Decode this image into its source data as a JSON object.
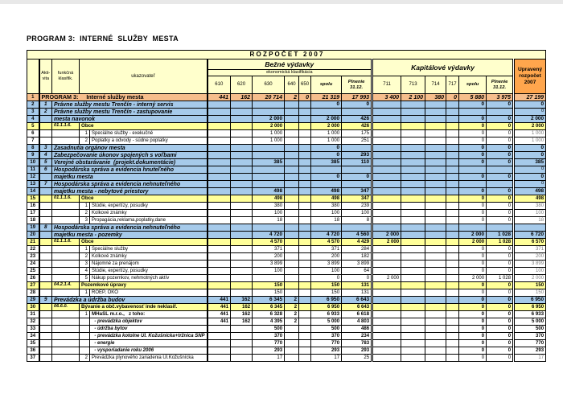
{
  "page_title": "PROGRAM 3:  INTERNÉ  SLUŽBY  MESTA",
  "colors": {
    "header_bg": "#FFFFCC",
    "orange_header_bg": "#FFA64D",
    "program_row_bg": "#F6BE8C",
    "section_row_bg": "#A6CAEA",
    "classification_row_bg": "#FFFF99",
    "grid_line": "#000000"
  },
  "header": {
    "banner": "R O Z P O Č E T   2 0 0 7",
    "aktivita_line1": "Akti-",
    "aktivita_line2": "vita",
    "klasifikacia_line1": "funkčná",
    "klasifikacia_line2": "klasifik.",
    "ukazovatel": "ukazovateľ",
    "bezne_vydavky": "Bežné výdavky",
    "ekonomicka_klasifikacia": "ekonomická klasifikácia",
    "kapitalove_vydavky": "Kapitálové výdavky",
    "upraveny_rozpocet": "Upravený rozpočet 2007",
    "bezne_cols": [
      "610",
      "620",
      "630",
      "640",
      "650",
      "spolu",
      "Plnenie 31.12."
    ],
    "kapitalove_cols": [
      "711",
      "713",
      "714",
      "717",
      "spolu",
      "Plnenie 31.12."
    ]
  },
  "rows": [
    {
      "num": "1",
      "text": "PROGRAM 3:     Interné služby mesta",
      "style": "program",
      "b610": "441",
      "b620": "162",
      "b630": "20 714",
      "b640": "2",
      "b650": "0",
      "bspolu": "21 319",
      "bpln": "17 993",
      "k711": "3 400",
      "k713": "2 100",
      "k714": "380",
      "k717": "0",
      "kspolu": "5 880",
      "kpln": "3 975",
      "uprav": "27 199"
    },
    {
      "num": "2",
      "akt": "1",
      "text": "Právne služby mestu Trenčín - interný servis",
      "style": "section",
      "bspolu": "0",
      "bpln": "0",
      "kspolu": "0",
      "kpln": "0",
      "uprav": "0"
    },
    {
      "num": "3",
      "akt": "2",
      "text": "Právne služby mestu Trenčín - zastupovanie",
      "style": "section",
      "uprav": "0",
      "upravSmall": true
    },
    {
      "num": "4",
      "text": "mesta navonok",
      "style": "section",
      "b630": "2 000",
      "bspolu": "2 000",
      "bpln": "426",
      "kspolu": "0",
      "kpln": "0",
      "uprav": "2 000"
    },
    {
      "num": "5",
      "klas": "01.1.1.6.",
      "text": "Obce",
      "style": "klasif",
      "b630": "2 000",
      "bspolu": "2 000",
      "bpln": "426",
      "kspolu": "0",
      "kpln": "0",
      "uprav": "2 000"
    },
    {
      "num": "6",
      "subnum": "1",
      "text": "Špeciálne služby - exekučné",
      "style": "detail",
      "b630": "1 000",
      "bspolu": "1 000",
      "bpln": "175",
      "kspolu": "0",
      "kpln": "0",
      "uprav": "1 000"
    },
    {
      "num": "7",
      "subnum": "2",
      "text": "Poplatky a odvody - súdne poplatky",
      "style": "detail",
      "b630": "1 000",
      "bspolu": "1 000",
      "bpln": "251",
      "kspolu": "0",
      "kpln": "0",
      "uprav": "1 000"
    },
    {
      "num": "8",
      "akt": "3",
      "text": "Zasadnutia orgánov mesta",
      "style": "section",
      "bspolu": "0",
      "kspolu": "0",
      "kpln": "0",
      "uprav": "0"
    },
    {
      "num": "9",
      "akt": "4",
      "text": "Zabezpečovanie úkonov spojených s voľbami",
      "style": "section",
      "bspolu": "0",
      "bpln": "293",
      "kspolu": "0",
      "kpln": "0",
      "uprav": "0"
    },
    {
      "num": "10",
      "akt": "5",
      "text": "Verejné obstarávanie  (projekt.dokumentácie)",
      "style": "section",
      "b630": "385",
      "bspolu": "385",
      "bpln": "110",
      "kspolu": "0",
      "kpln": "0",
      "uprav": "385"
    },
    {
      "num": "11",
      "akt": "6",
      "text": "Hospodárska správa a evidencia hnuteľného",
      "style": "section",
      "uprav": "0",
      "upravSmall": true
    },
    {
      "num": "12",
      "text": "majetku mesta",
      "style": "section",
      "bspolu": "0",
      "bpln": "0",
      "kspolu": "0",
      "kpln": "0",
      "uprav": "0"
    },
    {
      "num": "13",
      "akt": "7",
      "text": "Hospodárska správa a evidencia nehnuteľného",
      "style": "section",
      "uprav": "0",
      "upravSmall": true
    },
    {
      "num": "14",
      "text": "majetku mesta - nebytové priestory",
      "style": "section",
      "b630": "498",
      "bspolu": "498",
      "bpln": "347",
      "kspolu": "0",
      "kpln": "0",
      "uprav": "498"
    },
    {
      "num": "15",
      "klas": "01.1.1.6.",
      "text": "Obce",
      "style": "klasif",
      "b630": "498",
      "bspolu": "498",
      "bpln": "347",
      "kspolu": "0",
      "kpln": "0",
      "uprav": "498"
    },
    {
      "num": "16",
      "subnum": "1",
      "text": "Štúdie, expertízy, posudky",
      "style": "detail",
      "b630": "380",
      "bspolu": "380",
      "bpln": "239",
      "kspolu": "0",
      "kpln": "0",
      "uprav": "380"
    },
    {
      "num": "17",
      "subnum": "2",
      "text": "Kolkové známky",
      "style": "detail",
      "b630": "100",
      "bspolu": "100",
      "bpln": "100",
      "kspolu": "0",
      "kpln": "0",
      "uprav": "100"
    },
    {
      "num": "18",
      "subnum": "3",
      "text": "Propagácia,reklama,poplatky,dane",
      "style": "detail",
      "b630": "18",
      "bspolu": "18",
      "bpln": "8",
      "kspolu": "0",
      "kpln": "0",
      "uprav": "18"
    },
    {
      "num": "19",
      "akt": "8",
      "text": "Hospodárska správa a evidencia nehnuteľného",
      "style": "section"
    },
    {
      "num": "20",
      "text": "majetku mesta - pozemky",
      "style": "section",
      "b630": "4 720",
      "bspolu": "4 720",
      "bpln": "4 560",
      "k711": "2 000",
      "kspolu": "2 000",
      "kpln": "1 028",
      "uprav": "6 720"
    },
    {
      "num": "21",
      "klas": "01.1.1.6.",
      "text": "Obce",
      "style": "klasif",
      "b630": "4 570",
      "bspolu": "4 570",
      "bpln": "4 429",
      "k711": "2 000",
      "kspolu": "2 000",
      "kpln": "1 028",
      "uprav": "6 570"
    },
    {
      "num": "22",
      "subnum": "1",
      "text": "Špeciálne služby",
      "style": "detail",
      "b630": "371",
      "bspolu": "371",
      "bpln": "284",
      "kspolu": "0",
      "kpln": "0",
      "uprav": "371"
    },
    {
      "num": "23",
      "subnum": "2",
      "text": "Kolkové známky",
      "style": "detail",
      "b630": "200",
      "bspolu": "200",
      "bpln": "182",
      "kspolu": "0",
      "kpln": "0",
      "uprav": "200"
    },
    {
      "num": "24",
      "subnum": "3",
      "text": "Nájomné za prenájom",
      "style": "detail",
      "b630": "3 899",
      "bspolu": "3 899",
      "bpln": "3 899",
      "kspolu": "0",
      "kpln": "0",
      "uprav": "3 899"
    },
    {
      "num": "25",
      "subnum": "4",
      "text": "Štúdie, expertízy, posudky",
      "style": "detail",
      "b630": "100",
      "bspolu": "100",
      "bpln": "64",
      "kspolu": "0",
      "kpln": "0",
      "uprav": "100"
    },
    {
      "num": "26",
      "subnum": "5",
      "text": "Nákup pozemkov, nehmotných aktív",
      "style": "detail",
      "bspolu": "0",
      "bpln": "0",
      "k711": "2 000",
      "kspolu": "2 000",
      "kpln": "1 028",
      "uprav": "2 000"
    },
    {
      "num": "27",
      "klas": "04.2.1.4.",
      "text": "Pozemkové úpravy",
      "style": "klasif",
      "b630": "150",
      "bspolu": "150",
      "bpln": "131",
      "kspolu": "0",
      "kpln": "0",
      "uprav": "150"
    },
    {
      "num": "28",
      "subnum": "1",
      "text": "ROEP, OKO",
      "style": "detail",
      "b630": "150",
      "bspolu": "150",
      "bpln": "131",
      "kspolu": "0",
      "kpln": "0",
      "uprav": "150"
    },
    {
      "num": "29",
      "akt": "9",
      "text": "Prevádzka a údržba budov",
      "style": "section",
      "b610": "441",
      "b620": "162",
      "b630": "6 345",
      "b640": "2",
      "bspolu": "6 950",
      "bpln": "6 643",
      "kspolu": "0",
      "kpln": "0",
      "uprav": "6 950"
    },
    {
      "num": "30",
      "klas": "06.6.0.",
      "text": "Bývanie a obč.vybavenosť inde neklasif.",
      "style": "klasif",
      "b610": "441",
      "b620": "162",
      "b630": "6 345",
      "b640": "2",
      "bspolu": "6 950",
      "bpln": "6 643",
      "kspolu": "0",
      "kpln": "0",
      "uprav": "6 950"
    },
    {
      "num": "31",
      "subnum": "1",
      "text": "MHaSL m.r.o.,   z toho:",
      "style": "detail-bold",
      "b610": "441",
      "b620": "162",
      "b630": "6 328",
      "b640": "2",
      "bspolu": "6 933",
      "bpln": "6 618",
      "kspolu": "0",
      "kpln": "0",
      "uprav": "6 933"
    },
    {
      "num": "32",
      "text": "  - prevádzka objektov",
      "style": "detail-italic",
      "b610": "441",
      "b620": "162",
      "b630": "4 395",
      "b640": "2",
      "bspolu": "5 000",
      "bpln": "4 803",
      "kspolu": "0",
      "kpln": "0",
      "uprav": "5 000"
    },
    {
      "num": "33",
      "text": "  - údržba bytov",
      "style": "detail-italic",
      "b630": "500",
      "bspolu": "500",
      "bpln": "486",
      "kspolu": "0",
      "kpln": "0",
      "uprav": "500"
    },
    {
      "num": "34",
      "text": "  - prevádzka kotolne Ul. Kožušnícka+tržnica SNP",
      "style": "detail-italic",
      "b630": "370",
      "bspolu": "370",
      "bpln": "234",
      "kspolu": "0",
      "kpln": "0",
      "uprav": "370"
    },
    {
      "num": "35",
      "text": "  - energie",
      "style": "detail-italic",
      "b630": "770",
      "bspolu": "770",
      "bpln": "783",
      "kspolu": "0",
      "kpln": "0",
      "uprav": "770"
    },
    {
      "num": "36",
      "text": "  - vysporiadanie roku 2006",
      "style": "detail-italic",
      "b630": "293",
      "bspolu": "293",
      "bpln": "293",
      "kspolu": "0",
      "kpln": "0",
      "uprav": "293"
    },
    {
      "num": "37",
      "subnum": "2",
      "text": "Prevádzka plynového zariadenia Ul.Kožušnícka",
      "style": "detail",
      "b630": "17",
      "bspolu": "17",
      "bpln": "25",
      "kspolu": "0",
      "kpln": "0",
      "uprav": "17"
    }
  ]
}
